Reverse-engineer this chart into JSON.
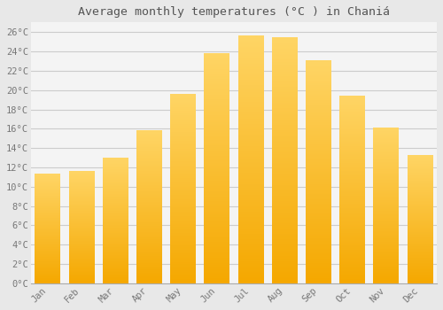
{
  "title": "Average monthly temperatures (°C ) in Chaniá",
  "months": [
    "Jan",
    "Feb",
    "Mar",
    "Apr",
    "May",
    "Jun",
    "Jul",
    "Aug",
    "Sep",
    "Oct",
    "Nov",
    "Dec"
  ],
  "values": [
    11.3,
    11.6,
    13.0,
    15.8,
    19.6,
    23.8,
    25.6,
    25.4,
    23.0,
    19.4,
    16.1,
    13.2
  ],
  "bar_color_bottom": "#F5A800",
  "bar_color_top": "#FFD060",
  "background_color": "#e8e8e8",
  "plot_bg_color": "#f4f4f4",
  "grid_color": "#cccccc",
  "tick_label_color": "#777777",
  "title_color": "#555555",
  "ylim": [
    0,
    27
  ],
  "yticks": [
    0,
    2,
    4,
    6,
    8,
    10,
    12,
    14,
    16,
    18,
    20,
    22,
    24,
    26
  ],
  "ytick_labels": [
    "0°C",
    "2°C",
    "4°C",
    "6°C",
    "8°C",
    "10°C",
    "12°C",
    "14°C",
    "16°C",
    "18°C",
    "20°C",
    "22°C",
    "24°C",
    "26°C"
  ],
  "title_fontsize": 9.5,
  "tick_fontsize": 7.5,
  "font_family": "monospace",
  "bar_width": 0.75
}
